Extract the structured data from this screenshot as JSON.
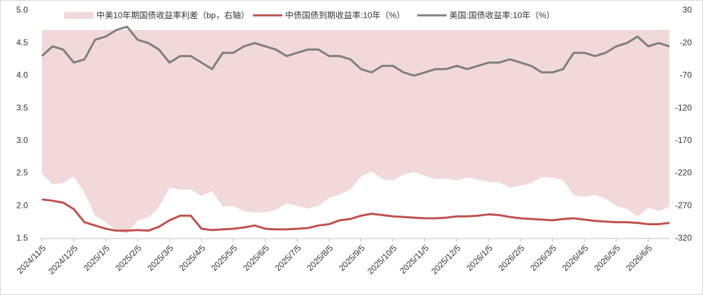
{
  "chart_data": {
    "type": "line",
    "categories": [
      "2024/11/5",
      null,
      null,
      "2024/12/5",
      null,
      null,
      "2025/1/5",
      null,
      null,
      "2025/2/5",
      null,
      null,
      "2025/3/5",
      null,
      null,
      "2025/4/5",
      null,
      null,
      "2025/5/5",
      null,
      null,
      "2025/6/5",
      null,
      null,
      "2025/7/5",
      null,
      null,
      "2025/8/5",
      null,
      null,
      "2025/9/5",
      null,
      null,
      "2025/10/5",
      null,
      null,
      "2025/11/5",
      null,
      null,
      "2025/12/5",
      null,
      null,
      "2026/1/5",
      null,
      null,
      "2026/2/5",
      null,
      null,
      "2026/3/5",
      null,
      null,
      "2026/4/5",
      null,
      null,
      "2026/5/5",
      null,
      null,
      "2026/6/5",
      null,
      null
    ],
    "series": [
      {
        "name": "中美10年期国债收益率利差（bp，右轴）",
        "type": "area",
        "axis": "y2",
        "color": "#f2d9d9",
        "values": [
          -220,
          -237,
          -235,
          -225,
          -250,
          -285,
          -295,
          -308,
          -313,
          -292,
          -288,
          -272,
          -242,
          -245,
          -245,
          -255,
          -247,
          -271,
          -270,
          -278,
          -280,
          -280,
          -276,
          -266,
          -270,
          -274,
          -270,
          -258,
          -252,
          -245,
          -225,
          -217,
          -229,
          -231,
          -222,
          -218,
          -224,
          -229,
          -228,
          -231,
          -226,
          -230,
          -233,
          -234,
          -242,
          -239,
          -235,
          -226,
          -227,
          -230,
          -254,
          -256,
          -253,
          -259,
          -270,
          -275,
          -286,
          -273,
          -278,
          -271
        ]
      },
      {
        "name": "中债国债到期收益率:10年（%）",
        "type": "line",
        "color": "#c0504d",
        "values": [
          2.1,
          2.08,
          2.05,
          1.95,
          1.75,
          1.7,
          1.65,
          1.62,
          1.62,
          1.63,
          1.62,
          1.68,
          1.78,
          1.85,
          1.85,
          1.65,
          1.63,
          1.64,
          1.65,
          1.67,
          1.7,
          1.65,
          1.64,
          1.64,
          1.65,
          1.66,
          1.7,
          1.72,
          1.78,
          1.8,
          1.85,
          1.88,
          1.86,
          1.84,
          1.83,
          1.82,
          1.81,
          1.81,
          1.82,
          1.84,
          1.84,
          1.85,
          1.87,
          1.86,
          1.83,
          1.81,
          1.8,
          1.79,
          1.78,
          1.8,
          1.81,
          1.79,
          1.77,
          1.76,
          1.75,
          1.75,
          1.74,
          1.72,
          1.72,
          1.74
        ]
      },
      {
        "name": "美国:国债收益率:10年（%）",
        "type": "line",
        "color": "#7f7f7f",
        "values": [
          4.3,
          4.45,
          4.4,
          4.2,
          4.25,
          4.55,
          4.6,
          4.7,
          4.75,
          4.55,
          4.5,
          4.4,
          4.2,
          4.3,
          4.3,
          4.2,
          4.1,
          4.35,
          4.35,
          4.45,
          4.5,
          4.45,
          4.4,
          4.3,
          4.35,
          4.4,
          4.4,
          4.3,
          4.3,
          4.25,
          4.1,
          4.05,
          4.15,
          4.15,
          4.05,
          4.0,
          4.05,
          4.1,
          4.1,
          4.15,
          4.1,
          4.15,
          4.2,
          4.2,
          4.25,
          4.2,
          4.15,
          4.05,
          4.05,
          4.1,
          4.35,
          4.35,
          4.3,
          4.35,
          4.45,
          4.5,
          4.6,
          4.45,
          4.5,
          4.45
        ]
      }
    ],
    "ylim": [
      1.5,
      5.0
    ],
    "yticks": [
      1.5,
      {
        "value": 2,
        "label": "2.0"
      },
      2.5,
      {
        "value": 3,
        "label": "3.0"
      },
      3.5,
      {
        "value": 4,
        "label": "4.0"
      },
      4.5,
      {
        "value": 5,
        "label": "5.0"
      }
    ],
    "y2lim": [
      -320,
      30
    ],
    "y2ticks": [
      -320,
      -270,
      -220,
      -170,
      -120,
      -70,
      -20,
      30
    ]
  }
}
